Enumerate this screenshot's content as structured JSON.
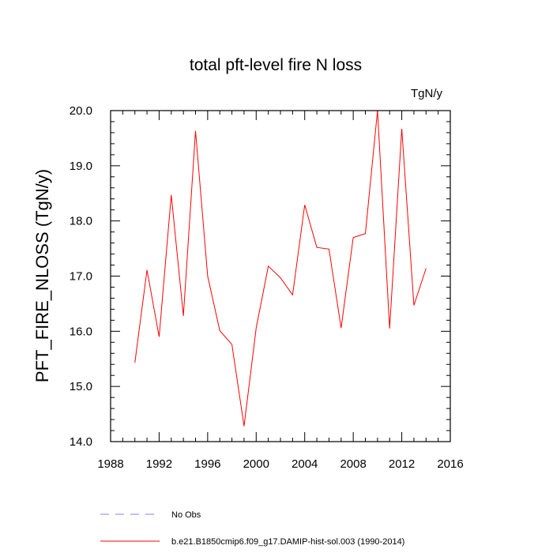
{
  "chart_data": {
    "type": "line",
    "title": "total pft-level fire N loss",
    "units_label": "TgN/y",
    "xlabel": "",
    "ylabel": "PFT_FIRE_NLOSS  (TgN/y)",
    "xlim": [
      1988,
      2016
    ],
    "ylim": [
      14.0,
      20.0
    ],
    "x_ticks": [
      1988,
      1992,
      1996,
      2000,
      2004,
      2008,
      2012,
      2016
    ],
    "y_ticks": [
      14.0,
      15.0,
      16.0,
      17.0,
      18.0,
      19.0,
      20.0
    ],
    "y_tick_labels": [
      "14.0",
      "15.0",
      "16.0",
      "17.0",
      "18.0",
      "19.0",
      "20.0"
    ],
    "grid": false,
    "legend_position": "bottom",
    "series": [
      {
        "name": "b.e21.B1850cmip6.f09_g17.DAMIP-hist-sol.003 (1990-2014)",
        "color": "#ff0000",
        "style": "solid",
        "x": [
          1990,
          1991,
          1992,
          1993,
          1994,
          1995,
          1996,
          1997,
          1998,
          1999,
          2000,
          2001,
          2002,
          2003,
          2004,
          2005,
          2006,
          2007,
          2008,
          2009,
          2010,
          2011,
          2012,
          2013,
          2014
        ],
        "values": [
          15.43,
          17.11,
          15.9,
          18.47,
          16.28,
          19.63,
          17.0,
          16.01,
          15.76,
          14.28,
          16.06,
          17.18,
          16.97,
          16.66,
          18.29,
          17.52,
          17.49,
          16.06,
          17.7,
          17.77,
          20.0,
          16.05,
          19.67,
          16.47,
          17.14
        ]
      },
      {
        "name": "No Obs",
        "color": "#7f7fff",
        "style": "dashed",
        "x": [],
        "values": []
      }
    ]
  }
}
